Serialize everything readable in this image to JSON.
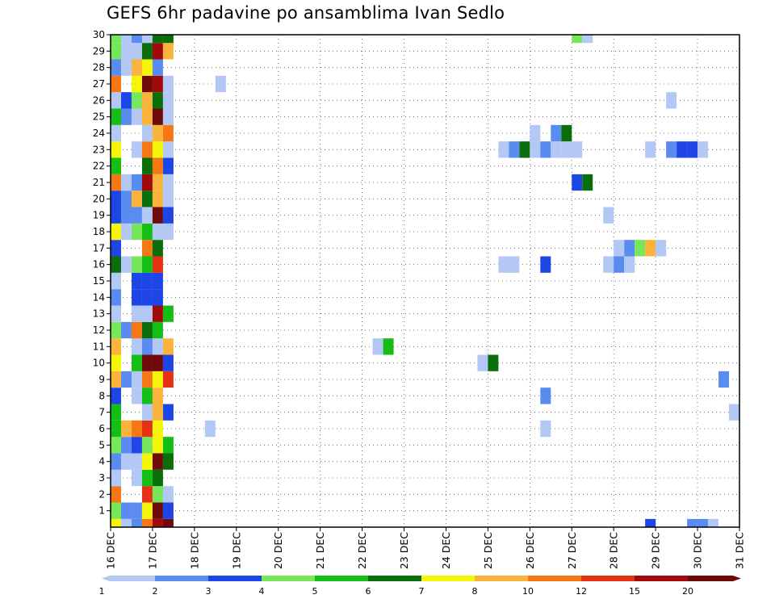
{
  "chart_data": {
    "type": "heatmap",
    "title": "GEFS 6hr padavine po ansamblima Ivan Sedlo",
    "xlabel": "",
    "ylabel": "",
    "grid": true,
    "x_ticks": [
      "16 DEC",
      "17 DEC",
      "18 DEC",
      "19 DEC",
      "20 DEC",
      "21 DEC",
      "22 DEC",
      "23 DEC",
      "24 DEC",
      "25 DEC",
      "26 DEC",
      "27 DEC",
      "28 DEC",
      "29 DEC",
      "30 DEC",
      "31 DEC"
    ],
    "y_ticks": [
      1,
      2,
      3,
      4,
      5,
      6,
      7,
      8,
      9,
      10,
      11,
      12,
      13,
      14,
      15,
      16,
      17,
      18,
      19,
      20,
      21,
      22,
      23,
      24,
      25,
      26,
      27,
      28,
      29,
      30
    ],
    "ylim": [
      0,
      30
    ],
    "x_step_hours": 6,
    "colorbar": {
      "colors": [
        "#b4c8f5",
        "#5a8cf0",
        "#1e46e6",
        "#78e65a",
        "#14be14",
        "#0a6e0a",
        "#f5f50a",
        "#fab43c",
        "#f57814",
        "#e63214",
        "#a00a0a",
        "#6e0a0a"
      ],
      "tick_labels": [
        "1",
        "2",
        "3",
        "4",
        "5",
        "6",
        "7",
        "8",
        "10",
        "12",
        "15",
        "20"
      ],
      "legend_placement": "bottom"
    },
    "cells": [
      [
        0,
        0,
        "#f5f50a"
      ],
      [
        1,
        0,
        "#b4c8f5"
      ],
      [
        2,
        0,
        "#5a8cf0"
      ],
      [
        3,
        0,
        "#f57814"
      ],
      [
        4,
        0,
        "#a00a0a"
      ],
      [
        5,
        0,
        "#6e0a0a"
      ],
      [
        0,
        1,
        "#78e65a"
      ],
      [
        1,
        1,
        "#5a8cf0"
      ],
      [
        2,
        1,
        "#5a8cf0"
      ],
      [
        3,
        1,
        "#f5f50a"
      ],
      [
        4,
        1,
        "#6e0a0a"
      ],
      [
        5,
        1,
        "#1e46e6"
      ],
      [
        0,
        2,
        "#f57814"
      ],
      [
        3,
        2,
        "#e63214"
      ],
      [
        4,
        2,
        "#78e65a"
      ],
      [
        5,
        2,
        "#b4c8f5"
      ],
      [
        0,
        3,
        "#b4c8f5"
      ],
      [
        2,
        3,
        "#b4c8f5"
      ],
      [
        3,
        3,
        "#14be14"
      ],
      [
        4,
        3,
        "#0a6e0a"
      ],
      [
        0,
        4,
        "#5a8cf0"
      ],
      [
        1,
        4,
        "#b4c8f5"
      ],
      [
        2,
        4,
        "#b4c8f5"
      ],
      [
        3,
        4,
        "#f5f50a"
      ],
      [
        4,
        4,
        "#6e0a0a"
      ],
      [
        5,
        4,
        "#0a6e0a"
      ],
      [
        0,
        5,
        "#78e65a"
      ],
      [
        1,
        5,
        "#5a8cf0"
      ],
      [
        2,
        5,
        "#1e46e6"
      ],
      [
        3,
        5,
        "#78e65a"
      ],
      [
        4,
        5,
        "#f5f50a"
      ],
      [
        5,
        5,
        "#14be14"
      ],
      [
        0,
        6,
        "#14be14"
      ],
      [
        1,
        6,
        "#fab43c"
      ],
      [
        2,
        6,
        "#f57814"
      ],
      [
        3,
        6,
        "#e63214"
      ],
      [
        4,
        6,
        "#f5f50a"
      ],
      [
        0,
        7,
        "#14be14"
      ],
      [
        3,
        7,
        "#b4c8f5"
      ],
      [
        4,
        7,
        "#fab43c"
      ],
      [
        5,
        7,
        "#1e46e6"
      ],
      [
        0,
        8,
        "#1e46e6"
      ],
      [
        2,
        8,
        "#b4c8f5"
      ],
      [
        3,
        8,
        "#14be14"
      ],
      [
        4,
        8,
        "#fab43c"
      ],
      [
        0,
        9,
        "#fab43c"
      ],
      [
        1,
        9,
        "#5a8cf0"
      ],
      [
        2,
        9,
        "#b4c8f5"
      ],
      [
        3,
        9,
        "#f57814"
      ],
      [
        4,
        9,
        "#f5f50a"
      ],
      [
        5,
        9,
        "#e63214"
      ],
      [
        0,
        10,
        "#f5f50a"
      ],
      [
        2,
        10,
        "#14be14"
      ],
      [
        3,
        10,
        "#6e0a0a"
      ],
      [
        4,
        10,
        "#6e0a0a"
      ],
      [
        5,
        10,
        "#1e46e6"
      ],
      [
        0,
        11,
        "#fab43c"
      ],
      [
        2,
        11,
        "#b4c8f5"
      ],
      [
        3,
        11,
        "#5a8cf0"
      ],
      [
        4,
        11,
        "#b4c8f5"
      ],
      [
        5,
        11,
        "#fab43c"
      ],
      [
        0,
        12,
        "#78e65a"
      ],
      [
        1,
        12,
        "#5a8cf0"
      ],
      [
        2,
        12,
        "#f57814"
      ],
      [
        3,
        12,
        "#0a6e0a"
      ],
      [
        4,
        12,
        "#14be14"
      ],
      [
        0,
        13,
        "#b4c8f5"
      ],
      [
        2,
        13,
        "#b4c8f5"
      ],
      [
        3,
        13,
        "#b4c8f5"
      ],
      [
        4,
        13,
        "#a00a0a"
      ],
      [
        5,
        13,
        "#14be14"
      ],
      [
        0,
        14,
        "#5a8cf0"
      ],
      [
        2,
        14,
        "#1e46e6"
      ],
      [
        3,
        14,
        "#1e46e6"
      ],
      [
        4,
        14,
        "#1e46e6"
      ],
      [
        0,
        15,
        "#b4c8f5"
      ],
      [
        2,
        15,
        "#1e46e6"
      ],
      [
        3,
        15,
        "#1e46e6"
      ],
      [
        4,
        15,
        "#1e46e6"
      ],
      [
        0,
        16,
        "#0a6e0a"
      ],
      [
        1,
        16,
        "#b4c8f5"
      ],
      [
        2,
        16,
        "#78e65a"
      ],
      [
        3,
        16,
        "#14be14"
      ],
      [
        4,
        16,
        "#e63214"
      ],
      [
        0,
        17,
        "#1e46e6"
      ],
      [
        3,
        17,
        "#f57814"
      ],
      [
        4,
        17,
        "#0a6e0a"
      ],
      [
        0,
        18,
        "#f5f50a"
      ],
      [
        1,
        18,
        "#b4c8f5"
      ],
      [
        2,
        18,
        "#78e65a"
      ],
      [
        3,
        18,
        "#14be14"
      ],
      [
        4,
        18,
        "#b4c8f5"
      ],
      [
        5,
        18,
        "#b4c8f5"
      ],
      [
        0,
        19,
        "#1e46e6"
      ],
      [
        1,
        19,
        "#5a8cf0"
      ],
      [
        2,
        19,
        "#5a8cf0"
      ],
      [
        3,
        19,
        "#b4c8f5"
      ],
      [
        4,
        19,
        "#6e0a0a"
      ],
      [
        5,
        19,
        "#1e46e6"
      ],
      [
        0,
        20,
        "#1e46e6"
      ],
      [
        1,
        20,
        "#5a8cf0"
      ],
      [
        2,
        20,
        "#fab43c"
      ],
      [
        3,
        20,
        "#0a6e0a"
      ],
      [
        4,
        20,
        "#fab43c"
      ],
      [
        5,
        20,
        "#b4c8f5"
      ],
      [
        0,
        21,
        "#f57814"
      ],
      [
        1,
        21,
        "#b4c8f5"
      ],
      [
        2,
        21,
        "#5a8cf0"
      ],
      [
        3,
        21,
        "#a00a0a"
      ],
      [
        4,
        21,
        "#fab43c"
      ],
      [
        5,
        21,
        "#b4c8f5"
      ],
      [
        0,
        22,
        "#14be14"
      ],
      [
        3,
        22,
        "#0a6e0a"
      ],
      [
        4,
        22,
        "#f57814"
      ],
      [
        5,
        22,
        "#1e46e6"
      ],
      [
        0,
        23,
        "#f5f50a"
      ],
      [
        2,
        23,
        "#b4c8f5"
      ],
      [
        3,
        23,
        "#f57814"
      ],
      [
        4,
        23,
        "#f5f50a"
      ],
      [
        5,
        23,
        "#b4c8f5"
      ],
      [
        0,
        24,
        "#b4c8f5"
      ],
      [
        3,
        24,
        "#b4c8f5"
      ],
      [
        4,
        24,
        "#fab43c"
      ],
      [
        5,
        24,
        "#f57814"
      ],
      [
        0,
        25,
        "#14be14"
      ],
      [
        1,
        25,
        "#5a8cf0"
      ],
      [
        2,
        25,
        "#b4c8f5"
      ],
      [
        3,
        25,
        "#fab43c"
      ],
      [
        4,
        25,
        "#6e0a0a"
      ],
      [
        5,
        25,
        "#b4c8f5"
      ],
      [
        0,
        26,
        "#b4c8f5"
      ],
      [
        1,
        26,
        "#1e46e6"
      ],
      [
        2,
        26,
        "#78e65a"
      ],
      [
        3,
        26,
        "#fab43c"
      ],
      [
        4,
        26,
        "#0a6e0a"
      ],
      [
        5,
        26,
        "#b4c8f5"
      ],
      [
        0,
        27,
        "#f57814"
      ],
      [
        2,
        27,
        "#f5f50a"
      ],
      [
        3,
        27,
        "#6e0a0a"
      ],
      [
        4,
        27,
        "#a00a0a"
      ],
      [
        5,
        27,
        "#b4c8f5"
      ],
      [
        0,
        28,
        "#5a8cf0"
      ],
      [
        1,
        28,
        "#b4c8f5"
      ],
      [
        2,
        28,
        "#fab43c"
      ],
      [
        3,
        28,
        "#f5f50a"
      ],
      [
        4,
        28,
        "#5a8cf0"
      ],
      [
        0,
        29,
        "#78e65a"
      ],
      [
        1,
        29,
        "#b4c8f5"
      ],
      [
        2,
        29,
        "#b4c8f5"
      ],
      [
        3,
        29,
        "#0a6e0a"
      ],
      [
        4,
        29,
        "#a00a0a"
      ],
      [
        5,
        29,
        "#fab43c"
      ],
      [
        0,
        30,
        "#78e65a"
      ],
      [
        1,
        30,
        "#b4c8f5"
      ],
      [
        2,
        30,
        "#5a8cf0"
      ],
      [
        3,
        30,
        "#b4c8f5"
      ],
      [
        4,
        30,
        "#0a6e0a"
      ],
      [
        5,
        30,
        "#0a6e0a"
      ],
      [
        9,
        6,
        "#b4c8f5"
      ],
      [
        10,
        27,
        "#b4c8f5"
      ],
      [
        25,
        11,
        "#b4c8f5"
      ],
      [
        26,
        11,
        "#14be14"
      ],
      [
        35,
        10,
        "#b4c8f5"
      ],
      [
        36,
        10,
        "#0a6e0a"
      ],
      [
        37,
        16,
        "#b4c8f5"
      ],
      [
        38,
        16,
        "#b4c8f5"
      ],
      [
        41,
        16,
        "#1e46e6"
      ],
      [
        37,
        23,
        "#b4c8f5"
      ],
      [
        38,
        23,
        "#5a8cf0"
      ],
      [
        39,
        23,
        "#0a6e0a"
      ],
      [
        40,
        23,
        "#b4c8f5"
      ],
      [
        41,
        23,
        "#5a8cf0"
      ],
      [
        42,
        23,
        "#b4c8f5"
      ],
      [
        43,
        23,
        "#b4c8f5"
      ],
      [
        44,
        23,
        "#b4c8f5"
      ],
      [
        40,
        24,
        "#b4c8f5"
      ],
      [
        42,
        24,
        "#5a8cf0"
      ],
      [
        43,
        24,
        "#0a6e0a"
      ],
      [
        41,
        8,
        "#5a8cf0"
      ],
      [
        41,
        6,
        "#b4c8f5"
      ],
      [
        44,
        21,
        "#1e46e6"
      ],
      [
        45,
        21,
        "#0a6e0a"
      ],
      [
        44,
        30,
        "#78e65a"
      ],
      [
        45,
        30,
        "#b4c8f5"
      ],
      [
        47,
        19,
        "#b4c8f5"
      ],
      [
        47,
        16,
        "#b4c8f5"
      ],
      [
        48,
        16,
        "#5a8cf0"
      ],
      [
        49,
        16,
        "#b4c8f5"
      ],
      [
        48,
        17,
        "#b4c8f5"
      ],
      [
        49,
        17,
        "#5a8cf0"
      ],
      [
        50,
        17,
        "#78e65a"
      ],
      [
        51,
        17,
        "#fab43c"
      ],
      [
        52,
        17,
        "#b4c8f5"
      ],
      [
        51,
        23,
        "#b4c8f5"
      ],
      [
        53,
        23,
        "#5a8cf0"
      ],
      [
        54,
        23,
        "#1e46e6"
      ],
      [
        55,
        23,
        "#1e46e6"
      ],
      [
        56,
        23,
        "#b4c8f5"
      ],
      [
        53,
        26,
        "#b4c8f5"
      ],
      [
        51,
        0,
        "#1e46e6"
      ],
      [
        55,
        0,
        "#5a8cf0"
      ],
      [
        56,
        0,
        "#5a8cf0"
      ],
      [
        57,
        0,
        "#b4c8f5"
      ],
      [
        58,
        9,
        "#5a8cf0"
      ],
      [
        59,
        7,
        "#b4c8f5"
      ]
    ]
  }
}
